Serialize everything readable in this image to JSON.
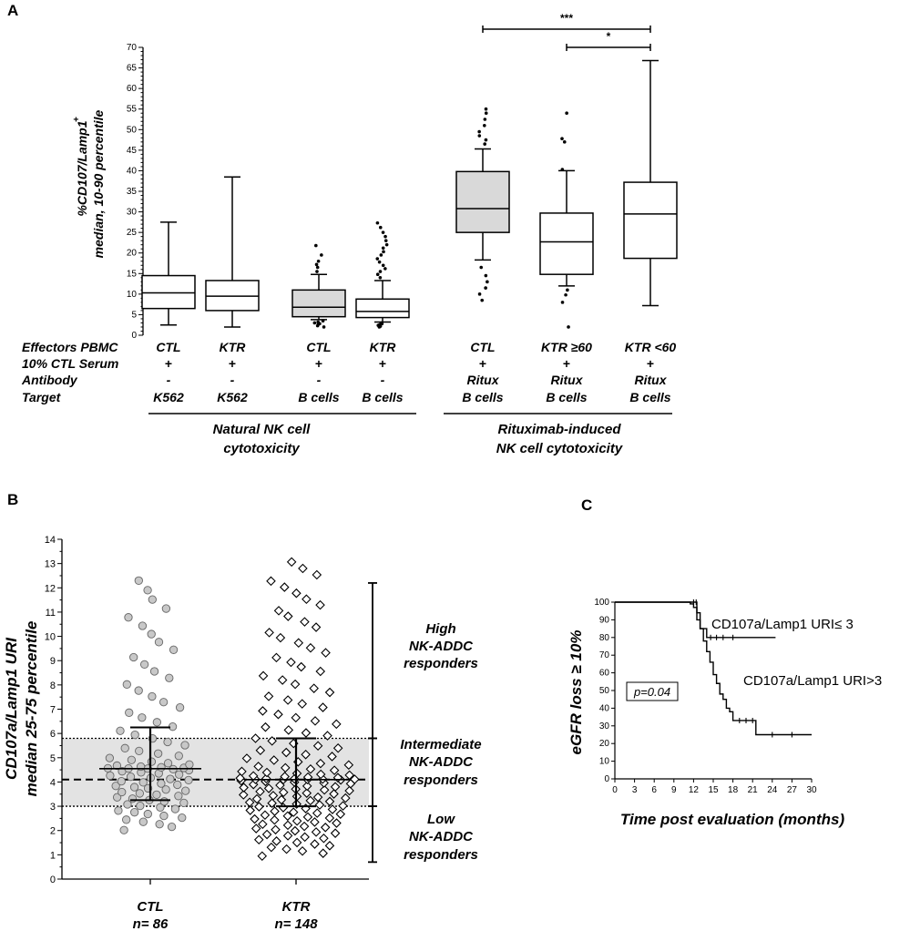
{
  "chart_data": [
    {
      "panel": "A",
      "type": "boxplot",
      "ylabel_line1": "%CD107/Lamp1",
      "ylabel_sup": "+",
      "ylabel_line2": "median,  10-90 percentile",
      "ylim": [
        0,
        70
      ],
      "yticks": [
        0,
        5,
        10,
        15,
        20,
        25,
        30,
        35,
        40,
        45,
        50,
        55,
        60,
        65,
        70
      ],
      "row_labels": [
        "Effectors PBMC",
        "10% CTL Serum",
        "Antibody",
        "Target"
      ],
      "boxes": [
        {
          "id": "ctl-k562",
          "effector": "CTL",
          "serum": "+",
          "antibody": "-",
          "target": "K562",
          "fill": "#ffffff",
          "p10": 2.5,
          "q1": 6.5,
          "median": 10.3,
          "q3": 14.5,
          "p90": 27.5,
          "outliers": []
        },
        {
          "id": "ktr-k562",
          "effector": "KTR",
          "serum": "+",
          "antibody": "-",
          "target": "K562",
          "fill": "#ffffff",
          "p10": 2,
          "q1": 6,
          "median": 9.5,
          "q3": 13.3,
          "p90": 38.5,
          "outliers": []
        },
        {
          "id": "ctl-bcells",
          "effector": "CTL",
          "serum": "+",
          "antibody": "-",
          "target": "B cells",
          "fill": "#d9d9d9",
          "p10": 3.8,
          "q1": 4.5,
          "median": 6.8,
          "q3": 11,
          "p90": 14.8,
          "outliers": [
            2,
            2.3,
            2.6,
            2.8,
            3,
            3.2,
            3.5,
            15.5,
            16.5,
            17.2,
            18,
            19.5,
            21.8
          ]
        },
        {
          "id": "ktr-bcells",
          "effector": "KTR",
          "serum": "+",
          "antibody": "-",
          "target": "B cells",
          "fill": "#ffffff",
          "p10": 3.2,
          "q1": 4.3,
          "median": 5.8,
          "q3": 8.8,
          "p90": 13.3,
          "outliers": [
            2,
            2.2,
            2.4,
            2.6,
            2.8,
            3,
            14,
            14.8,
            15.5,
            16.2,
            17,
            17.8,
            18.6,
            19.5,
            20.3,
            21.2,
            22,
            23,
            24,
            25,
            26.2,
            27.3
          ]
        },
        {
          "id": "ctl-ritux",
          "effector": "CTL",
          "serum": "+",
          "antibody": "Ritux",
          "target": "B cells",
          "fill": "#d9d9d9",
          "p10": 18.3,
          "q1": 25,
          "median": 30.8,
          "q3": 39.8,
          "p90": 45.3,
          "outliers": [
            8.5,
            10,
            11.5,
            13,
            14.5,
            16.5,
            46.5,
            47.5,
            48.5,
            49.5,
            51,
            52.5,
            54,
            55
          ]
        },
        {
          "id": "ktr-ge60",
          "effector": "KTR ≥60",
          "serum": "+",
          "antibody": "Ritux",
          "target": "B cells",
          "fill": "#ffffff",
          "p10": 12,
          "q1": 14.8,
          "median": 22.7,
          "q3": 29.7,
          "p90": 40,
          "outliers": [
            2,
            8,
            9.8,
            11,
            40.3,
            47,
            47.8,
            54
          ]
        },
        {
          "id": "ktr-lt60",
          "effector": "KTR <60",
          "serum": "+",
          "antibody": "Ritux",
          "target": "B  cells",
          "fill": "#ffffff",
          "p10": 7.2,
          "q1": 18.7,
          "median": 29.5,
          "q3": 37.2,
          "p90": 66.8,
          "outliers": []
        }
      ],
      "groups": [
        {
          "label_line1": "Natural NK cell",
          "label_line2": "cytotoxicity"
        },
        {
          "label_line1": "Rituximab-induced",
          "label_line2": "NK cell cytotoxicity"
        }
      ],
      "significance": [
        {
          "from": "ctl-ritux",
          "to": "ktr-lt60",
          "label": "***"
        },
        {
          "from": "ktr-ge60",
          "to": "ktr-lt60",
          "label": "*"
        }
      ]
    },
    {
      "panel": "B",
      "type": "scatter",
      "ylabel_line1": "CD107a/Lamp1 URI",
      "ylabel_line2": "median 25-75 percentile",
      "ylim": [
        0,
        14
      ],
      "yticks": [
        0,
        1,
        2,
        3,
        4,
        5,
        6,
        7,
        8,
        9,
        10,
        11,
        12,
        13,
        14
      ],
      "band": [
        3,
        5.8
      ],
      "overall_median": 4.1,
      "groups": [
        {
          "name": "CTL",
          "n_label": "n= 86",
          "marker": "circle",
          "fill": "#c8c8c8",
          "median": 4.55,
          "q1": 3.25,
          "q3": 6.25,
          "n": 86,
          "min": 1.9,
          "max": 12.5
        },
        {
          "name": "KTR",
          "n_label": "n= 148",
          "marker": "diamond",
          "fill": "#ffffff",
          "median": 4.1,
          "q1": 3,
          "q3": 5.8,
          "n": 148,
          "min": 0.85,
          "max": 13.2
        }
      ],
      "responder_ranges": [
        {
          "range": [
            5.8,
            12.2
          ],
          "line1": "High",
          "line2": "NK-ADDC",
          "line3": "responders"
        },
        {
          "range": [
            3,
            5.8
          ],
          "line1": "Intermediate",
          "line2": "NK-ADDC",
          "line3": "responders"
        },
        {
          "range": [
            0.7,
            3
          ],
          "line1": "Low",
          "line2": "NK-ADDC",
          "line3": "responders"
        }
      ]
    },
    {
      "panel": "C",
      "type": "line",
      "xlabel": "Time post evaluation (months)",
      "ylabel": "eGFR loss ≥ 10%",
      "xlim": [
        0,
        30
      ],
      "ylim": [
        0,
        100
      ],
      "xticks": [
        0,
        3,
        6,
        9,
        12,
        15,
        18,
        21,
        24,
        27,
        30
      ],
      "yticks": [
        0,
        10,
        20,
        30,
        40,
        50,
        60,
        70,
        80,
        90,
        100
      ],
      "pvalue": "p=0.04",
      "series": [
        {
          "name": "CD107a/Lamp1 URI≤ 3",
          "x": [
            0,
            11.8,
            12.5,
            13,
            14,
            22,
            24.5
          ],
          "y": [
            100,
            100,
            90,
            85,
            80,
            80,
            80
          ],
          "censored": [
            [
              12,
              100
            ],
            [
              12.4,
              100
            ],
            [
              14.6,
              80
            ],
            [
              15.5,
              80
            ],
            [
              16.5,
              80
            ],
            [
              18,
              80
            ]
          ]
        },
        {
          "name": "CD107a/Lamp1 URI>3",
          "x": [
            0,
            11,
            11.5,
            12,
            12.5,
            13,
            13.5,
            14,
            14.5,
            15,
            15.5,
            16,
            16.5,
            17,
            17.5,
            18,
            21.5,
            30
          ],
          "y": [
            100,
            100,
            99,
            97,
            94,
            85,
            78,
            72,
            66,
            59,
            54,
            48,
            45,
            40,
            38,
            33,
            25,
            25
          ],
          "censored": [
            [
              19,
              33
            ],
            [
              20,
              33
            ],
            [
              21,
              33
            ],
            [
              24,
              25
            ],
            [
              27,
              25
            ]
          ]
        }
      ]
    }
  ],
  "panel_labels": {
    "a": "A",
    "b": "B",
    "c": "C"
  }
}
